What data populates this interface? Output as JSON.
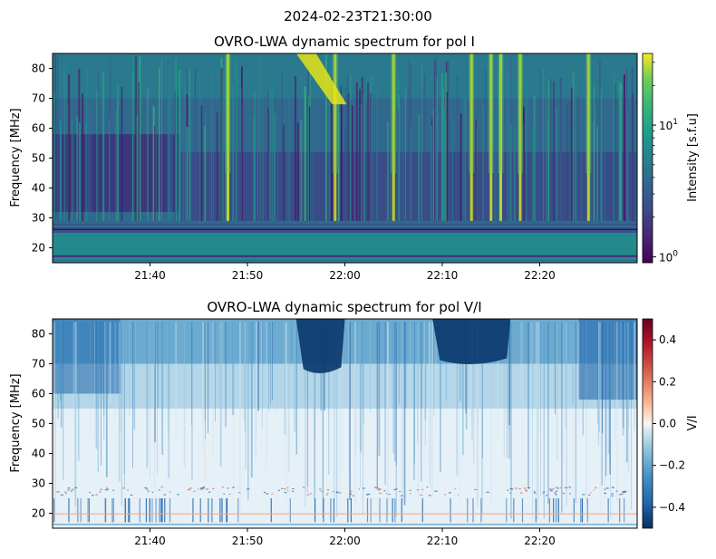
{
  "suptitle": "2024-02-23T21:30:00",
  "chart_data": [
    {
      "type": "heatmap",
      "title": "OVRO-LWA dynamic spectrum for pol I",
      "xlabel": "",
      "ylabel": "Frequency [MHz]",
      "x_ticks": [
        "21:40",
        "21:50",
        "22:00",
        "22:10",
        "22:20"
      ],
      "x_range": [
        "21:30",
        "22:30"
      ],
      "y_ticks": [
        20,
        30,
        40,
        50,
        60,
        70,
        80
      ],
      "ylim": [
        15,
        85
      ],
      "colormap": "viridis",
      "colorbar": {
        "label": "Intensity [s.f.u]",
        "scale": "log",
        "range": [
          0.9,
          35
        ],
        "ticks": [
          {
            "value": 1,
            "base": "10",
            "exp": "0"
          },
          {
            "value": 10,
            "base": "10",
            "exp": "1"
          }
        ]
      },
      "features": {
        "rfi_band_mhz": [
          25,
          28
        ],
        "bright_burst": {
          "start": "21:55",
          "end": "22:00",
          "freq_mhz": [
            68,
            85
          ]
        },
        "bright_vertical_bursts": [
          "21:48",
          "21:59",
          "22:05",
          "22:13",
          "22:15",
          "22:16",
          "22:18",
          "22:25"
        ]
      }
    },
    {
      "type": "heatmap",
      "title": "OVRO-LWA dynamic spectrum for pol V/I",
      "xlabel": "",
      "ylabel": "Frequency [MHz]",
      "x_ticks": [
        "21:40",
        "21:50",
        "22:00",
        "22:10",
        "22:20"
      ],
      "x_range": [
        "21:30",
        "22:30"
      ],
      "y_ticks": [
        20,
        30,
        40,
        50,
        60,
        70,
        80
      ],
      "ylim": [
        15,
        85
      ],
      "colormap": "RdBu_r",
      "colorbar": {
        "label": "V/I",
        "scale": "linear",
        "range": [
          -0.5,
          0.5
        ],
        "ticks": [
          {
            "value": 0.4,
            "text": "0.4"
          },
          {
            "value": 0.2,
            "text": "0.2"
          },
          {
            "value": 0.0,
            "text": "0.0"
          },
          {
            "value": -0.2,
            "text": "−0.2"
          },
          {
            "value": -0.4,
            "text": "−0.4"
          }
        ]
      },
      "features": {
        "polarized_regions": [
          {
            "start": "21:55",
            "end": "22:00",
            "freq_mhz": [
              67,
              85
            ],
            "value": -0.5
          },
          {
            "start": "22:09",
            "end": "22:17",
            "freq_mhz": [
              70,
              85
            ],
            "value": -0.5
          }
        ]
      }
    }
  ]
}
